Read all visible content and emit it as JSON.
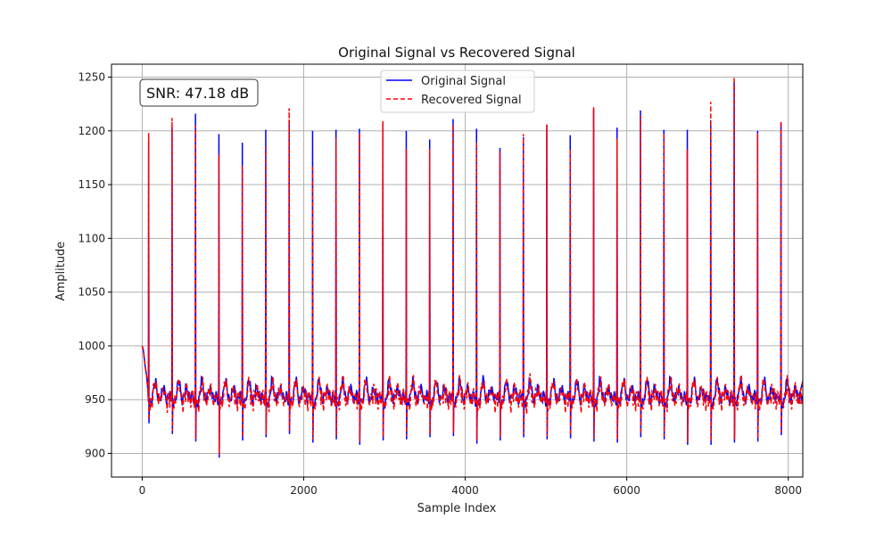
{
  "chart_data": {
    "type": "line",
    "title": "Original Signal vs Recovered Signal",
    "xlabel": "Sample Index",
    "ylabel": "Amplitude",
    "xlim": [
      -380,
      8180
    ],
    "ylim": [
      878,
      1262
    ],
    "xticks": [
      0,
      2000,
      4000,
      6000,
      8000
    ],
    "yticks": [
      900,
      950,
      1000,
      1050,
      1100,
      1150,
      1200,
      1250
    ],
    "grid": true,
    "legend_position": "top-center",
    "annotation": "SNR: 47.18 dB",
    "series": [
      {
        "name": "Original Signal",
        "color": "#0000ff",
        "style": "solid"
      },
      {
        "name": "Recovered Signal",
        "color": "#ff0000",
        "style": "dashed"
      }
    ],
    "beats": [
      {
        "x": 80,
        "peak_original": 1190,
        "peak_recovered": 1198,
        "trough": 928
      },
      {
        "x": 370,
        "peak_original": 1203,
        "peak_recovered": 1212,
        "trough": 918
      },
      {
        "x": 660,
        "peak_original": 1216,
        "peak_recovered": 1205,
        "trough": 911
      },
      {
        "x": 950,
        "peak_original": 1197,
        "peak_recovered": 1178,
        "trough": 896
      },
      {
        "x": 1240,
        "peak_original": 1189,
        "peak_recovered": 1168,
        "trough": 912
      },
      {
        "x": 1530,
        "peak_original": 1201,
        "peak_recovered": 1185,
        "trough": 915
      },
      {
        "x": 1820,
        "peak_original": 1210,
        "peak_recovered": 1221,
        "trough": 918
      },
      {
        "x": 2110,
        "peak_original": 1200,
        "peak_recovered": 1168,
        "trough": 910
      },
      {
        "x": 2400,
        "peak_original": 1201,
        "peak_recovered": 1193,
        "trough": 913
      },
      {
        "x": 2690,
        "peak_original": 1202,
        "peak_recovered": 1198,
        "trough": 908
      },
      {
        "x": 2980,
        "peak_original": 1207,
        "peak_recovered": 1209,
        "trough": 912
      },
      {
        "x": 3270,
        "peak_original": 1200,
        "peak_recovered": 1183,
        "trough": 913
      },
      {
        "x": 3560,
        "peak_original": 1192,
        "peak_recovered": 1183,
        "trough": 915
      },
      {
        "x": 3850,
        "peak_original": 1211,
        "peak_recovered": 1206,
        "trough": 916
      },
      {
        "x": 4140,
        "peak_original": 1202,
        "peak_recovered": 1190,
        "trough": 909
      },
      {
        "x": 4430,
        "peak_original": 1184,
        "peak_recovered": 1181,
        "trough": 912
      },
      {
        "x": 4720,
        "peak_original": 1194,
        "peak_recovered": 1197,
        "trough": 915
      },
      {
        "x": 5010,
        "peak_original": 1205,
        "peak_recovered": 1206,
        "trough": 913
      },
      {
        "x": 5300,
        "peak_original": 1196,
        "peak_recovered": 1183,
        "trough": 914
      },
      {
        "x": 5590,
        "peak_original": 1220,
        "peak_recovered": 1222,
        "trough": 911
      },
      {
        "x": 5880,
        "peak_original": 1203,
        "peak_recovered": 1193,
        "trough": 910
      },
      {
        "x": 6170,
        "peak_original": 1219,
        "peak_recovered": 1214,
        "trough": 915
      },
      {
        "x": 6460,
        "peak_original": 1201,
        "peak_recovered": 1198,
        "trough": 913
      },
      {
        "x": 6750,
        "peak_original": 1201,
        "peak_recovered": 1183,
        "trough": 908
      },
      {
        "x": 7040,
        "peak_original": 1210,
        "peak_recovered": 1227,
        "trough": 908
      },
      {
        "x": 7330,
        "peak_original": 1245,
        "peak_recovered": 1250,
        "trough": 910
      },
      {
        "x": 7620,
        "peak_original": 1200,
        "peak_recovered": 1198,
        "trough": 911
      },
      {
        "x": 7910,
        "peak_original": 1208,
        "peak_recovered": 1209,
        "trough": 917
      }
    ]
  }
}
